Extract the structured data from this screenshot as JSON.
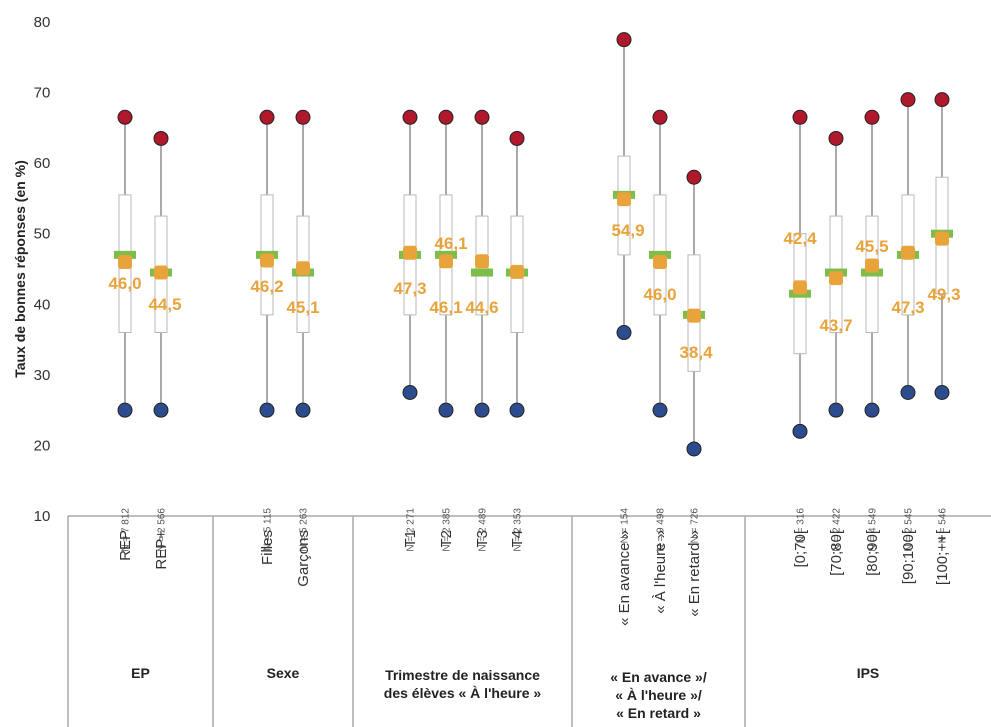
{
  "chart_data": {
    "type": "boxplot",
    "ylabel": "Taux de bonnes réponses (en %)",
    "ylim": [
      10,
      80
    ],
    "yticks": [
      "10",
      "20",
      "30",
      "40",
      "50",
      "60",
      "70",
      "80"
    ],
    "colors": {
      "mean_marker": "#E8A33B",
      "median_bar": "#7DBE4A",
      "max_dot": "#B0182C",
      "min_dot": "#2D4C8E",
      "box": "#B8B8B8",
      "whisker": "#555555",
      "divider": "#A9A9A9"
    },
    "groups": [
      {
        "label_lines": [
          "EP"
        ],
        "categories": [
          {
            "label": "REP",
            "n": "N = 7 812",
            "min": 25,
            "q1": 36,
            "median": 47,
            "q3": 55.5,
            "max": 66.5,
            "mean": 46.0,
            "mean_label": "46,0"
          },
          {
            "label": "REP+",
            "n": "N = 2 566",
            "min": 25,
            "q1": 36,
            "median": 44.5,
            "q3": 52.5,
            "max": 63.5,
            "mean": 44.5,
            "mean_label": "44,5"
          }
        ]
      },
      {
        "label_lines": [
          "Sexe"
        ],
        "categories": [
          {
            "label": "Filles",
            "n": "N = 5 115",
            "min": 25,
            "q1": 38.5,
            "median": 47,
            "q3": 55.5,
            "max": 66.5,
            "mean": 46.2,
            "mean_label": "46,2"
          },
          {
            "label": "Garçons",
            "n": "N = 5 263",
            "min": 25,
            "q1": 36,
            "median": 44.5,
            "q3": 52.5,
            "max": 66.5,
            "mean": 45.1,
            "mean_label": "45,1"
          }
        ]
      },
      {
        "label_lines": [
          "Trimestre de naissance",
          "des élèves « À l'heure »"
        ],
        "categories": [
          {
            "label": "T1",
            "n": "N = 2 271",
            "min": 27.5,
            "q1": 38.5,
            "median": 47,
            "q3": 55.5,
            "max": 66.5,
            "mean": 47.3,
            "mean_label": "47,3"
          },
          {
            "label": "T2",
            "n": "N = 2 385",
            "min": 25,
            "q1": 38.5,
            "median": 47,
            "q3": 55.5,
            "max": 66.5,
            "mean": 46.1,
            "mean_label": "46,1"
          },
          {
            "label": "T3",
            "n": "N = 2 489",
            "min": 25,
            "q1": 38.5,
            "median": 44.5,
            "q3": 52.5,
            "max": 66.5,
            "mean": 46.1,
            "mean_label": "46,1"
          },
          {
            "label": "T4",
            "n": "N = 2 353",
            "min": 25,
            "q1": 36,
            "median": 44.5,
            "q3": 52.5,
            "max": 63.5,
            "mean": 44.6,
            "mean_label": "44,6"
          }
        ]
      },
      {
        "label_lines": [
          "« En avance »/",
          "« À l'heure »/",
          "« En retard »"
        ],
        "categories": [
          {
            "label": "« En avance »",
            "n": "N = 154",
            "min": 36,
            "q1": 47,
            "median": 55.5,
            "q3": 61,
            "max": 77.5,
            "mean": 54.9,
            "mean_label": "54,9"
          },
          {
            "label": "« À l'heure »",
            "n": "N = 9 498",
            "min": 25,
            "q1": 38.5,
            "median": 47,
            "q3": 55.5,
            "max": 66.5,
            "mean": 46.0,
            "mean_label": "46,0"
          },
          {
            "label": "« En retard »",
            "n": "N = 726",
            "min": 19.5,
            "q1": 30.5,
            "median": 38.5,
            "q3": 47,
            "max": 58,
            "mean": 38.4,
            "mean_label": "38,4"
          }
        ]
      },
      {
        "label_lines": [
          "IPS"
        ],
        "categories": [
          {
            "label": "[0;70[",
            "n": "N = 316",
            "min": 22,
            "q1": 33,
            "median": 41.5,
            "q3": 50,
            "max": 66.5,
            "mean": 42.4,
            "mean_label": "42,4"
          },
          {
            "label": "[70;80[",
            "n": "N = 2 422",
            "min": 25,
            "q1": 36,
            "median": 44.5,
            "q3": 52.5,
            "max": 63.5,
            "mean": 43.7,
            "mean_label": "43,7"
          },
          {
            "label": "[80;90[",
            "n": "N = 4 549",
            "min": 25,
            "q1": 36,
            "median": 44.5,
            "q3": 52.5,
            "max": 66.5,
            "mean": 45.5,
            "mean_label": "45,5"
          },
          {
            "label": "[90;100[",
            "n": "N = 2 545",
            "min": 27.5,
            "q1": 38.5,
            "median": 47,
            "q3": 55.5,
            "max": 69,
            "mean": 47.3,
            "mean_label": "47,3"
          },
          {
            "label": "[100;++[",
            "n": "N = 546",
            "min": 27.5,
            "q1": 41.5,
            "median": 50,
            "q3": 58,
            "max": 69,
            "mean": 49.3,
            "mean_label": "49,3"
          }
        ]
      }
    ]
  }
}
